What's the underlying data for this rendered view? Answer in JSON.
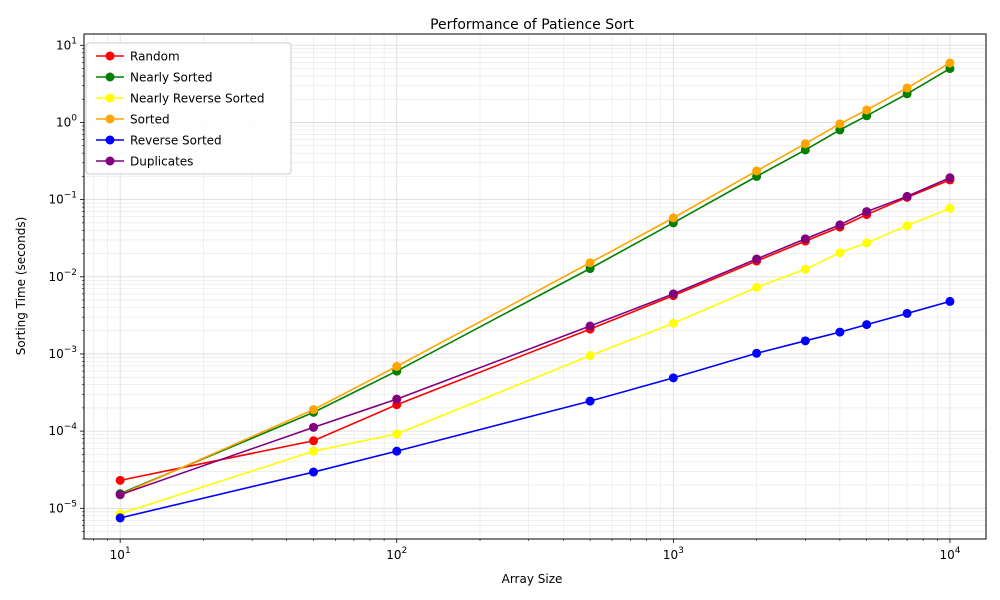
{
  "chart_data": {
    "type": "line",
    "title": "Performance of Patience Sort",
    "xlabel": "Array Size",
    "ylabel": "Sorting Time (seconds)",
    "xscale": "log",
    "yscale": "log",
    "xlim": [
      7.4,
      13500
    ],
    "ylim": [
      4e-06,
      14
    ],
    "grid": true,
    "legend_position": "top-left",
    "x_ticks": [
      {
        "value": 10,
        "base": "10",
        "exp": "1"
      },
      {
        "value": 100,
        "base": "10",
        "exp": "2"
      },
      {
        "value": 1000,
        "base": "10",
        "exp": "3"
      },
      {
        "value": 10000,
        "base": "10",
        "exp": "4"
      }
    ],
    "y_ticks": [
      {
        "value": 1e-05,
        "base": "10",
        "exp": "−5"
      },
      {
        "value": 0.0001,
        "base": "10",
        "exp": "−4"
      },
      {
        "value": 0.001,
        "base": "10",
        "exp": "−3"
      },
      {
        "value": 0.01,
        "base": "10",
        "exp": "−2"
      },
      {
        "value": 0.1,
        "base": "10",
        "exp": "−1"
      },
      {
        "value": 1,
        "base": "10",
        "exp": "0"
      },
      {
        "value": 10,
        "base": "10",
        "exp": "1"
      }
    ],
    "x": [
      10,
      50,
      100,
      500,
      1000,
      2000,
      3000,
      4000,
      5000,
      7000,
      10000
    ],
    "series": [
      {
        "name": "Random",
        "color": "#ff0000",
        "values": [
          2.3e-05,
          7.5e-05,
          0.00022,
          0.0021,
          0.0057,
          0.016,
          0.029,
          0.044,
          0.064,
          0.107,
          0.18
        ]
      },
      {
        "name": "Nearly Sorted",
        "color": "#008000",
        "values": [
          1.55e-05,
          0.000175,
          0.0006,
          0.0128,
          0.05,
          0.2,
          0.44,
          0.8,
          1.22,
          2.35,
          5.0
        ]
      },
      {
        "name": "Nearly Reverse Sorted",
        "color": "#ffff00",
        "values": [
          8.5e-06,
          5.5e-05,
          9.2e-05,
          0.00095,
          0.0025,
          0.0073,
          0.0125,
          0.0205,
          0.0275,
          0.046,
          0.077
        ]
      },
      {
        "name": "Sorted",
        "color": "#ffa500",
        "values": [
          1.5e-05,
          0.00019,
          0.00069,
          0.0152,
          0.058,
          0.235,
          0.53,
          0.96,
          1.45,
          2.8,
          5.9
        ]
      },
      {
        "name": "Reverse Sorted",
        "color": "#0000ff",
        "values": [
          7.5e-06,
          2.95e-05,
          5.5e-05,
          0.000245,
          0.00049,
          0.00102,
          0.00148,
          0.00192,
          0.0024,
          0.00335,
          0.0048
        ]
      },
      {
        "name": "Duplicates",
        "color": "#800080",
        "values": [
          1.5e-05,
          0.000112,
          0.00026,
          0.0023,
          0.006,
          0.017,
          0.031,
          0.047,
          0.07,
          0.11,
          0.192
        ]
      }
    ]
  }
}
